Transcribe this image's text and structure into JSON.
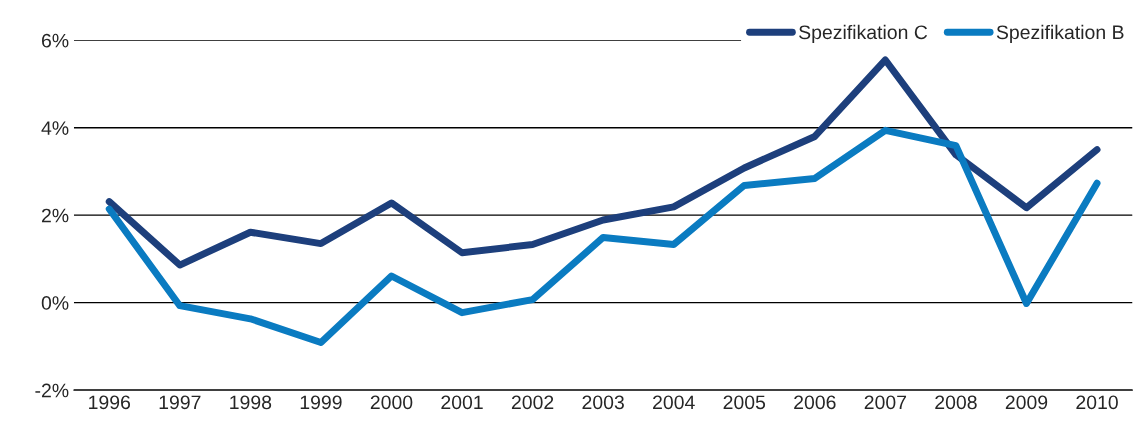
{
  "chart_data": {
    "type": "line",
    "categories": [
      "1996",
      "1997",
      "1998",
      "1999",
      "2000",
      "2001",
      "2002",
      "2003",
      "2004",
      "2005",
      "2006",
      "2007",
      "2008",
      "2009",
      "2010"
    ],
    "series": [
      {
        "name": "Spezifikation C",
        "color": "#1d3f7c",
        "values": [
          2.31,
          0.86,
          1.61,
          1.35,
          2.28,
          1.14,
          1.33,
          1.89,
          2.19,
          3.08,
          3.8,
          5.55,
          3.38,
          2.17,
          3.5
        ]
      },
      {
        "name": "Spezifikation B",
        "color": "#0a7bc1",
        "values": [
          2.14,
          -0.07,
          -0.37,
          -0.91,
          0.61,
          -0.23,
          0.07,
          1.49,
          1.33,
          2.68,
          2.84,
          3.94,
          3.59,
          -0.02,
          2.73
        ]
      }
    ],
    "ylim": [
      -2,
      6
    ],
    "yticks": [
      {
        "value": -2,
        "label": "-2%"
      },
      {
        "value": 0,
        "label": "0%"
      },
      {
        "value": 2,
        "label": "2%"
      },
      {
        "value": 4,
        "label": "4%"
      },
      {
        "value": 6,
        "label": "6%"
      }
    ],
    "grid": "y",
    "legend": "top right",
    "marker": "none",
    "line_style": "solid"
  }
}
